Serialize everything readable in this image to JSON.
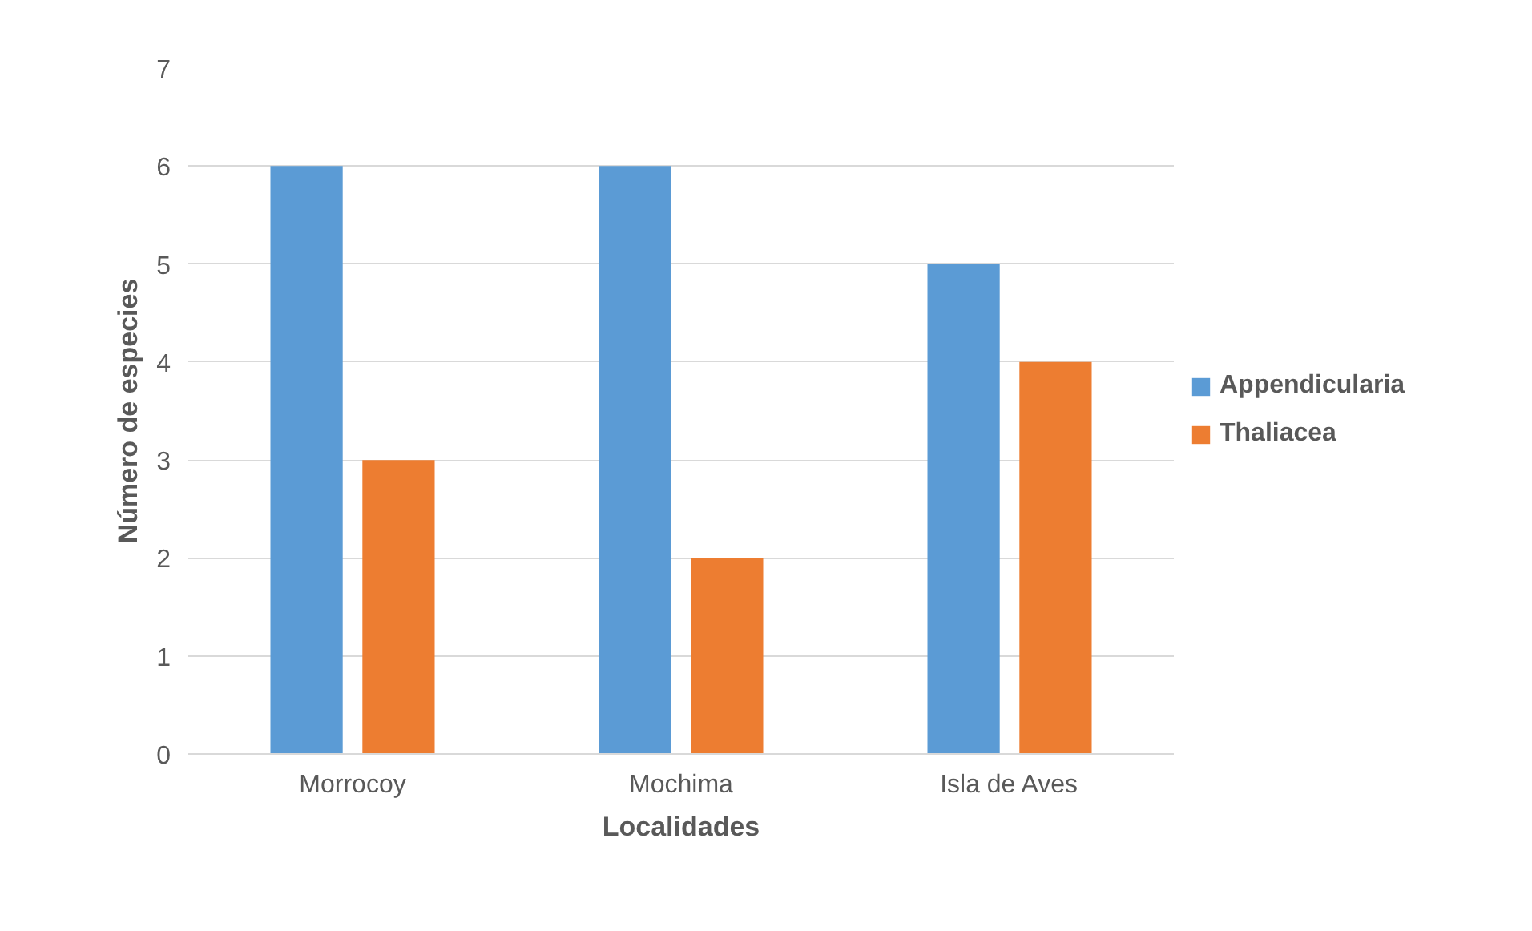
{
  "chart_data": {
    "type": "bar",
    "xlabel": "Localidades",
    "ylabel": "Número de especies",
    "categories": [
      "Morrocoy",
      "Mochima",
      "Isla de Aves"
    ],
    "series": [
      {
        "name": "Appendicularia",
        "color": "#5b9bd5",
        "values": [
          6,
          6,
          5
        ]
      },
      {
        "name": "Thaliacea",
        "color": "#ed7d31",
        "values": [
          3,
          2,
          4
        ]
      }
    ],
    "ylim": [
      0,
      7
    ],
    "yticks": [
      0,
      1,
      2,
      3,
      4,
      5,
      6,
      7
    ],
    "grid": "y",
    "legend": "right"
  }
}
